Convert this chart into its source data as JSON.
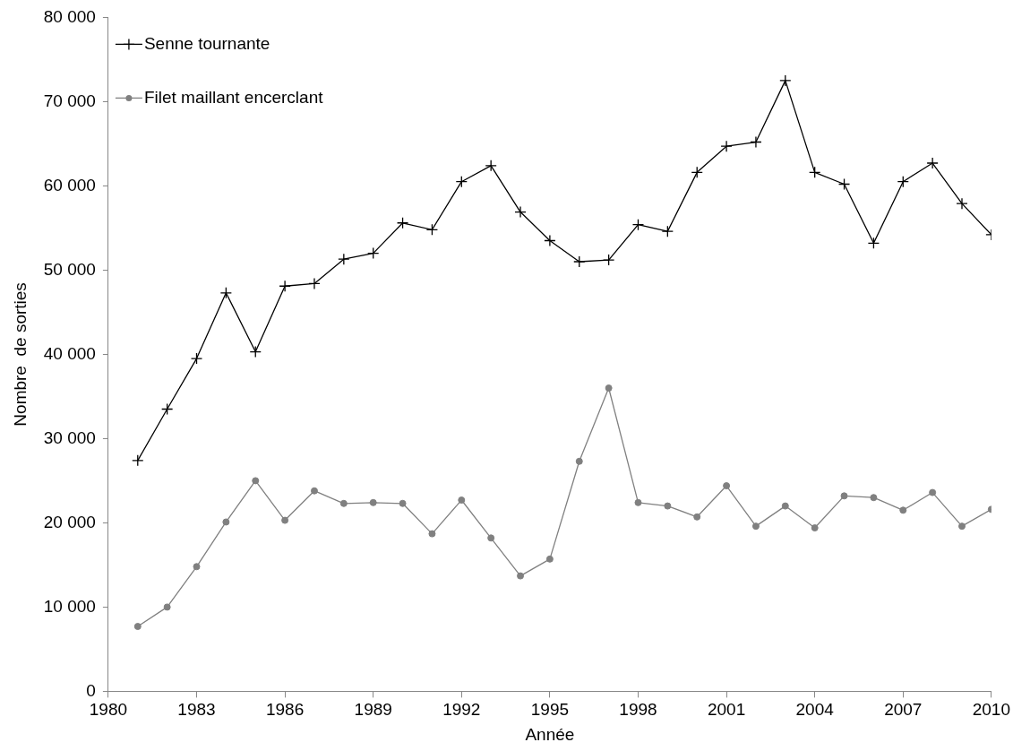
{
  "chart_data": {
    "type": "line",
    "xlabel": "Année",
    "ylabel": "Nombre  de sorties",
    "x": [
      1981,
      1982,
      1983,
      1984,
      1985,
      1986,
      1987,
      1988,
      1989,
      1990,
      1991,
      1992,
      1993,
      1994,
      1995,
      1996,
      1997,
      1998,
      1999,
      2000,
      2001,
      2002,
      2003,
      2004,
      2005,
      2006,
      2007,
      2008,
      2009,
      2010
    ],
    "series": [
      {
        "name": "Senne tournante",
        "color": "#000000",
        "marker": "cross",
        "values": [
          27400,
          33500,
          39500,
          47300,
          40300,
          48100,
          48400,
          51300,
          52000,
          55600,
          54800,
          60500,
          62400,
          56900,
          53500,
          51000,
          51200,
          55400,
          54600,
          61600,
          64700,
          65200,
          72500,
          61600,
          60200,
          53200,
          60500,
          62700,
          57900,
          54200
        ]
      },
      {
        "name": "Filet maillant encerclant",
        "color": "#808080",
        "marker": "circle",
        "values": [
          7700,
          10000,
          14800,
          20100,
          25000,
          20300,
          23800,
          22300,
          22400,
          22300,
          18700,
          22700,
          18200,
          13700,
          15700,
          27300,
          36000,
          22400,
          22000,
          20700,
          24400,
          19600,
          22000,
          19400,
          23200,
          23000,
          21500,
          23600,
          19600,
          21600
        ]
      }
    ],
    "xlim": [
      1980,
      2010
    ],
    "xticks": [
      1980,
      1983,
      1986,
      1989,
      1992,
      1995,
      1998,
      2001,
      2004,
      2007,
      2010
    ],
    "ylim": [
      0,
      80000
    ],
    "yticks": [
      0,
      {
        "value": 10000,
        "label": "10 000"
      },
      {
        "value": 20000,
        "label": "20 000"
      },
      {
        "value": 30000,
        "label": "30 000"
      },
      {
        "value": 40000,
        "label": "40 000"
      },
      {
        "value": 50000,
        "label": "50 000"
      },
      {
        "value": 60000,
        "label": "60 000"
      },
      {
        "value": 70000,
        "label": "70 000"
      },
      {
        "value": 80000,
        "label": "80 000"
      }
    ],
    "grid": false,
    "legend": "top left",
    "line_style": "solid"
  }
}
